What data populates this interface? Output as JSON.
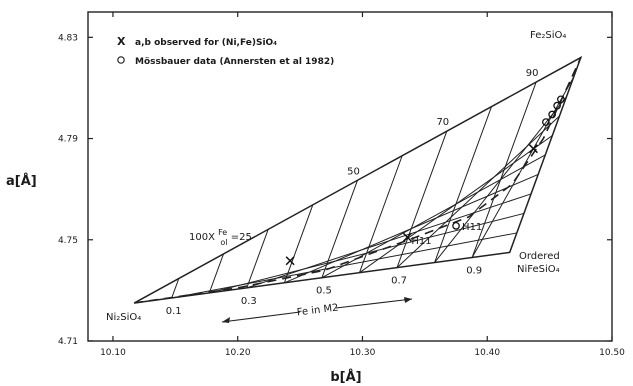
{
  "chart_data": {
    "type": "scatter",
    "xlabel": "b[Å]",
    "ylabel": "a[Å]",
    "xlim": [
      10.08,
      10.5
    ],
    "ylim": [
      4.71,
      4.84
    ],
    "x_ticks": [
      "10.10",
      "10.20",
      "10.30",
      "10.40",
      "10.50"
    ],
    "y_ticks": [
      "4.71",
      "4.75",
      "4.79",
      "4.83"
    ],
    "x_tick_values": [
      10.1,
      10.2,
      10.3,
      10.4,
      10.5
    ],
    "y_tick_values": [
      4.71,
      4.75,
      4.79,
      4.83
    ],
    "grid": false,
    "legend_position": "top-left",
    "legend": [
      {
        "marker": "X",
        "text": "a,b observed for (Ni,Fe)SiO₄"
      },
      {
        "marker": "o",
        "text": "Mössbauer data (Annersten et al 1982)"
      }
    ],
    "endmembers": [
      {
        "name": "Ni2SiO4",
        "label": "Ni₂SiO₄",
        "b": 10.117,
        "a": 4.725
      },
      {
        "name": "Fe2SiO4",
        "label": "Fe₂SiO₄",
        "b": 10.475,
        "a": 4.822
      },
      {
        "name": "Ordered NiFeSiO4",
        "label_line1": "Ordered",
        "label_line2": "NiFeSiO₄",
        "b": 10.418,
        "a": 4.745
      }
    ],
    "upper_edge_labels": [
      {
        "text": "100X",
        "frac": 0.25
      },
      {
        "text": "50",
        "frac": 0.5
      },
      {
        "text": "70",
        "frac": 0.7
      },
      {
        "text": "90",
        "frac": 0.9
      }
    ],
    "upper_edge_suffix": {
      "sup": "Fe",
      "sub": "ol",
      "eq": "=25"
    },
    "lower_edge_labels": [
      "0.1",
      "0.3",
      "0.5",
      "0.7",
      "0.9"
    ],
    "lower_edge_fracs": [
      0.1,
      0.3,
      0.5,
      0.7,
      0.9
    ],
    "grid_fracs": [
      0.1,
      0.2,
      0.3,
      0.4,
      0.5,
      0.6,
      0.7,
      0.8,
      0.9
    ],
    "arrow_label": "Fe in M2",
    "observed_x": [
      {
        "b": 10.242,
        "a": 4.7417
      },
      {
        "b": 10.336,
        "a": 4.751
      },
      {
        "b": 10.437,
        "a": 4.786
      }
    ],
    "mossbauer_o": [
      {
        "b": 10.375,
        "a": 4.7555,
        "label": "H11"
      },
      {
        "b": 10.447,
        "a": 4.7965
      },
      {
        "b": 10.452,
        "a": 4.7995
      },
      {
        "b": 10.456,
        "a": 4.803
      },
      {
        "b": 10.459,
        "a": 4.8055
      }
    ],
    "x_marker_label": "H11",
    "dashed_curve": [
      {
        "b": 10.117,
        "a": 4.725
      },
      {
        "b": 10.2,
        "a": 4.731
      },
      {
        "b": 10.27,
        "a": 4.738
      },
      {
        "b": 10.34,
        "a": 4.7505
      },
      {
        "b": 10.385,
        "a": 4.759
      },
      {
        "b": 10.42,
        "a": 4.772
      },
      {
        "b": 10.445,
        "a": 4.79
      },
      {
        "b": 10.462,
        "a": 4.808
      },
      {
        "b": 10.475,
        "a": 4.822
      }
    ]
  }
}
